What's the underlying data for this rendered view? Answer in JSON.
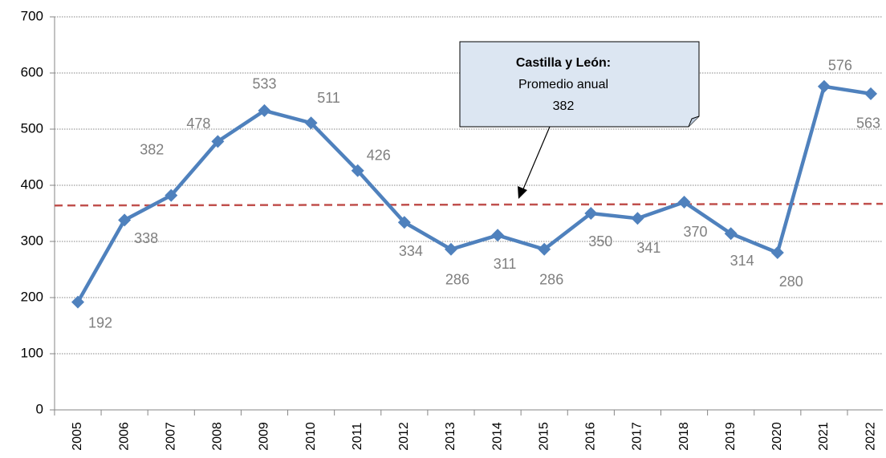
{
  "chart_data": {
    "type": "line",
    "categories": [
      "2005",
      "2006",
      "2007",
      "2008",
      "2009",
      "2010",
      "2011",
      "2012",
      "2013",
      "2014",
      "2015",
      "2016",
      "2017",
      "2018",
      "2019",
      "2020",
      "2021",
      "2022"
    ],
    "series": [
      {
        "color": "#4f81bd",
        "values": [
          192,
          338,
          382,
          478,
          533,
          511,
          426,
          334,
          286,
          311,
          286,
          350,
          341,
          370,
          314,
          280,
          576,
          563
        ]
      }
    ],
    "ylim": [
      0,
      700
    ],
    "yticks": [
      0,
      100,
      200,
      300,
      400,
      500,
      600,
      700
    ],
    "grid": true,
    "reference_line": {
      "start": 364,
      "end": 367,
      "color": "#c0504d"
    },
    "annotation": {
      "title": "Castilla y León:",
      "text": "Promedio anual",
      "value": "382"
    }
  }
}
